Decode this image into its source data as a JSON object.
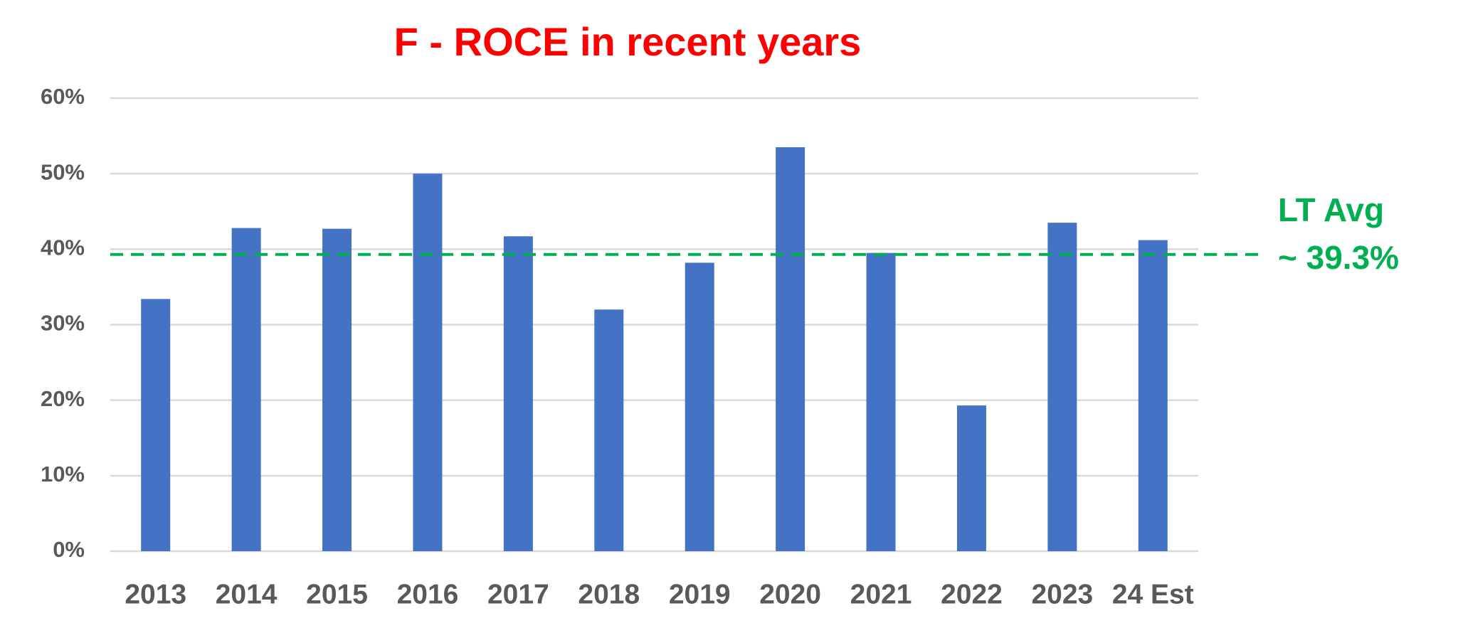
{
  "chart_data": {
    "type": "bar",
    "title": "F - ROCE  in recent years",
    "categories": [
      "2013",
      "2014",
      "2015",
      "2016",
      "2017",
      "2018",
      "2019",
      "2020",
      "2021",
      "2022",
      "2023",
      "24 Est"
    ],
    "values": [
      33.4,
      42.8,
      42.7,
      50,
      41.7,
      32,
      38.2,
      53.5,
      39.5,
      19.3,
      43.5,
      41.2
    ],
    "color": "#4472c4",
    "ylim": [
      0,
      60
    ],
    "yticks": [
      {
        "value": 0,
        "label": "0%"
      },
      {
        "value": 10,
        "label": "10%"
      },
      {
        "value": 20,
        "label": "20%"
      },
      {
        "value": 30,
        "label": "30%"
      },
      {
        "value": 40,
        "label": "40%"
      },
      {
        "value": 50,
        "label": "50%"
      },
      {
        "value": 60,
        "label": "60%"
      }
    ],
    "grid": true,
    "reference_line": {
      "value": 39.3,
      "label": "LT Avg",
      "value_label": "~ 39.3%",
      "color": "#00b050"
    }
  }
}
